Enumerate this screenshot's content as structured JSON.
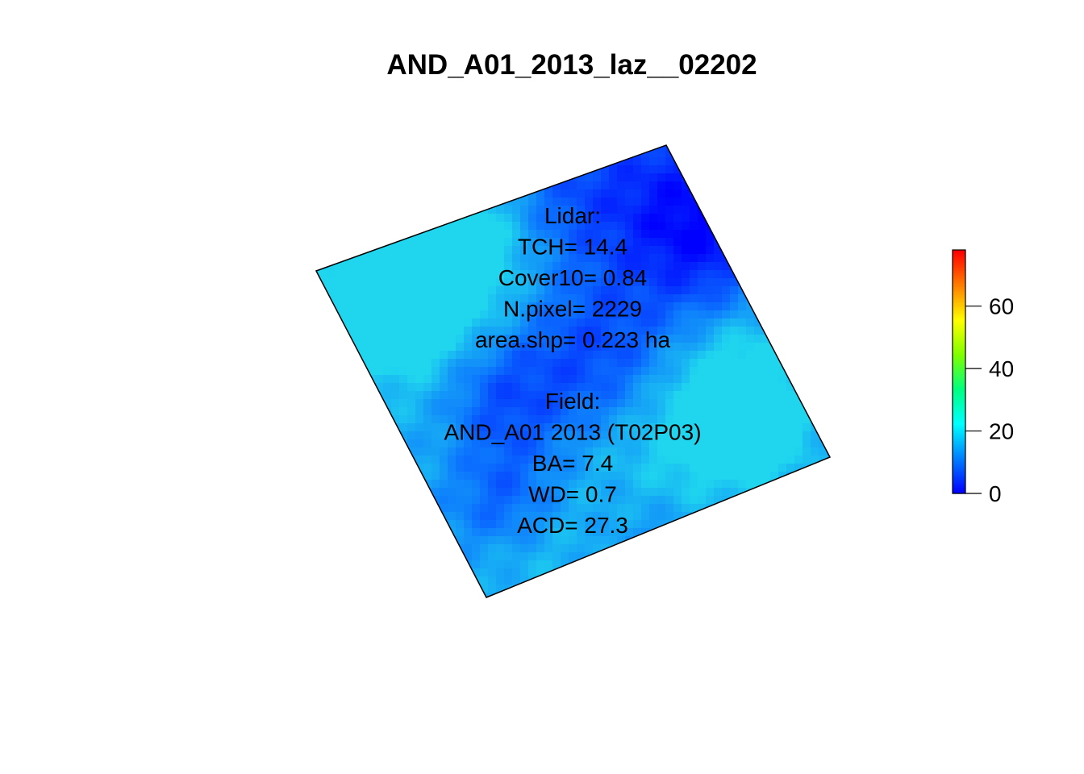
{
  "title": "AND_A01_2013_laz__02202",
  "annotation": {
    "lidar_lines": [
      "Lidar:",
      "TCH= 14.4",
      "Cover10= 0.84",
      "N.pixel= 2229",
      "area.shp= 0.223 ha"
    ],
    "field_lines": [
      "Field:",
      "AND_A01 2013 (T02P03)",
      "BA= 7.4",
      "WD= 0.7",
      "ACD= 27.3"
    ]
  },
  "legend": {
    "min": 0,
    "max": 78,
    "ticks": [
      {
        "value": 0,
        "label": "0"
      },
      {
        "value": 20,
        "label": "20"
      },
      {
        "value": 40,
        "label": "40"
      },
      {
        "value": 60,
        "label": "60"
      }
    ],
    "palette": [
      "#0000ff",
      "#0080ff",
      "#00ffff",
      "#00ff80",
      "#80ff00",
      "#ffff00",
      "#ff8000",
      "#ff0000"
    ]
  },
  "map": {
    "plot_outline": "tilted square plot boundary (black line)",
    "raster": "canopy height raster, values mostly 5-25",
    "raster_colors": {
      "low": "#0000ff",
      "mid": "#0b6fff",
      "high": "#1fd6ee"
    }
  }
}
